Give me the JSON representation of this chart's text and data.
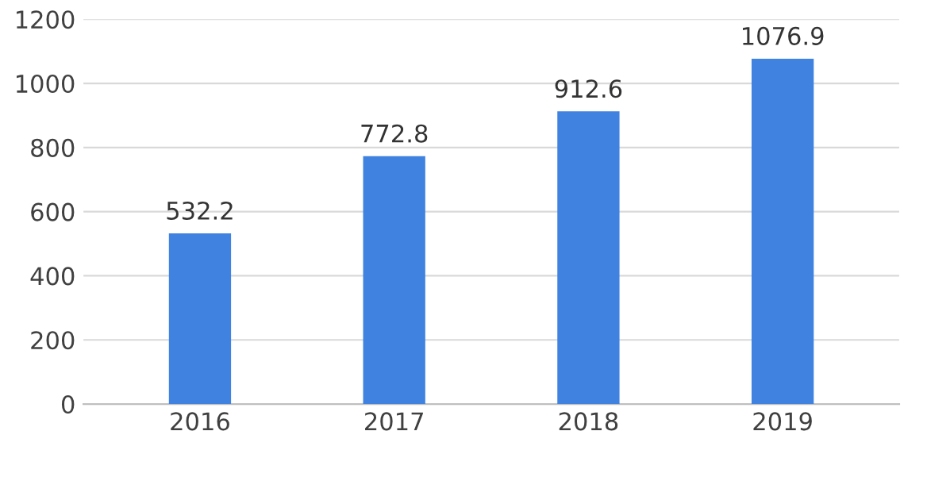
{
  "chart_data": {
    "type": "bar",
    "categories": [
      "2016",
      "2017",
      "2018",
      "2019"
    ],
    "values": [
      532.2,
      772.8,
      912.6,
      1076.9
    ],
    "color": "#3f82e0",
    "ylim": [
      0,
      1200
    ],
    "yticks": [
      0,
      200,
      400,
      600,
      800,
      1000,
      1200
    ],
    "grid": "y",
    "data_labels": true
  }
}
